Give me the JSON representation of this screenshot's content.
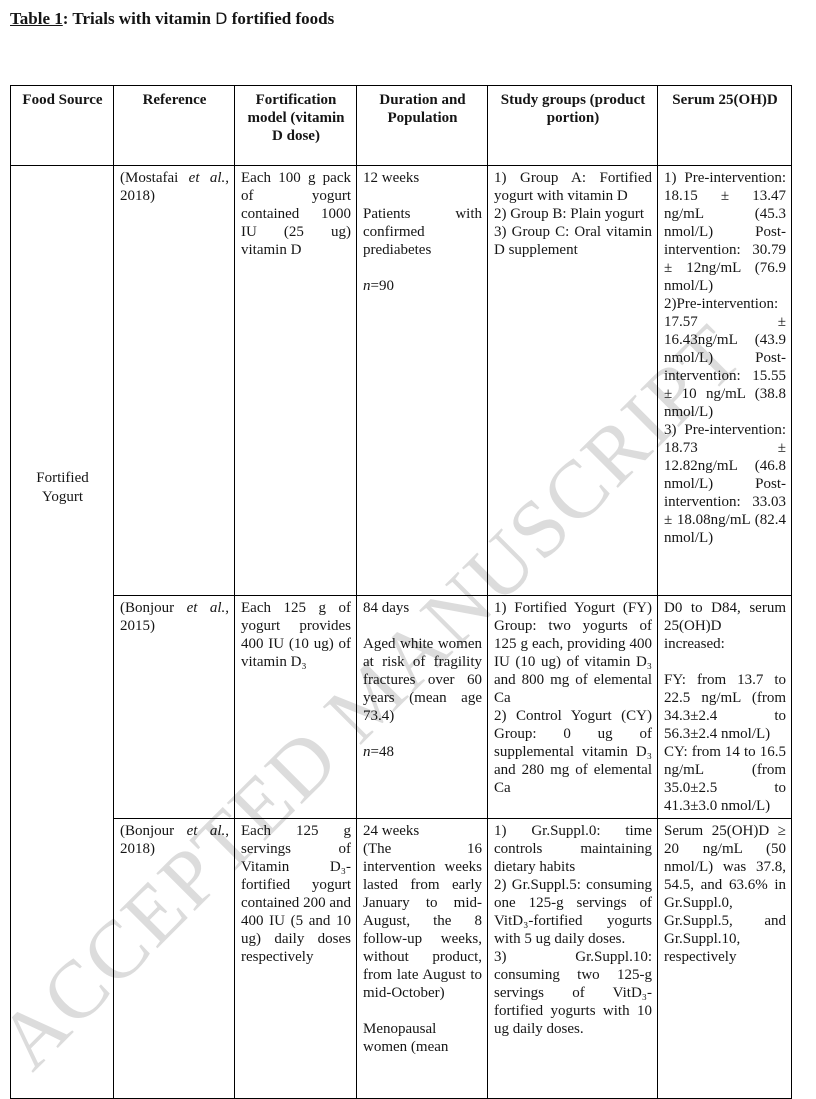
{
  "page": {
    "title": {
      "label": "Table 1",
      "separator": ": ",
      "before_d": "Trials with vitamin ",
      "d": "D",
      "after_d": " fortified foods"
    }
  },
  "watermark": {
    "text": "ACCEPTED MANUSCRIPT",
    "color": "#dcdcdc"
  },
  "table": {
    "headers": [
      "Food Source",
      "Reference",
      "Fortification model (vitamin D dose)",
      "Duration and Population",
      "Study groups (product portion)",
      "Serum 25(OH)D"
    ],
    "food_source": "Fortified Yogurt",
    "rows": [
      {
        "reference": {
          "pre": "(Mostafai ",
          "et_al": "et al.",
          "post": ", 2018)"
        },
        "fortification": "Each 100 g pack of yogurt contained 1000 IU (25 ug) vitamin D",
        "duration": {
          "p1": "12 weeks",
          "p2": "Patients with confirmed prediabetes",
          "n_italic": "n",
          "n_rest": "=90"
        },
        "study_groups": {
          "p1": "1) Group A: Fortified yogurt with vitamin D",
          "p2": "2) Group B: Plain yogurt",
          "p3": "3) Group C: Oral vitamin D supplement"
        },
        "serum": {
          "p1": "1) Pre-intervention: 18.15 ± 13.47 ng/mL (45.3 nmol/L) Post-intervention: 30.79 ± 12ng/mL (76.9 nmol/L)",
          "p2": "2)Pre-intervention: 17.57 ± 16.43ng/mL (43.9 nmol/L) Post-intervention: 15.55 ± 10 ng/mL (38.8 nmol/L)",
          "p3": "3) Pre-intervention: 18.73 ± 12.82ng/mL (46.8 nmol/L) Post-intervention: 33.03 ± 18.08ng/mL (82.4 nmol/L)"
        }
      },
      {
        "reference": {
          "pre": "(Bonjour ",
          "et_al": "et al.",
          "post": ", 2015)"
        },
        "fortification": "Each 125 g of yogurt provides 400 IU (10 ug) of vitamin D₃",
        "duration": {
          "p1": "84 days",
          "p2": "Aged white women at risk of fragility fractures over 60 years (mean age 73.4)",
          "n_italic": "n",
          "n_rest": "=48"
        },
        "study_groups": {
          "p1": "1) Fortified Yogurt (FY) Group: two yogurts of 125 g each, providing 400 IU (10 ug) of vitamin D₃ and 800 mg of elemental Ca",
          "p2": "2) Control Yogurt (CY) Group: 0 ug of supplemental vitamin D₃ and 280 mg of elemental Ca"
        },
        "serum": {
          "p1": "D0 to D84, serum 25(OH)D increased:",
          "p2": "FY: from 13.7 to 22.5 ng/mL (from 34.3±2.4 to 56.3±2.4 nmol/L)",
          "p3": "CY: from 14 to 16.5 ng/mL (from 35.0±2.5 to 41.3±3.0 nmol/L)"
        }
      },
      {
        "reference": {
          "pre": "(Bonjour ",
          "et_al": "et al.",
          "post": ", 2018)"
        },
        "fortification": "Each 125 g servings of Vitamin D₃-fortified yogurt contained 200 and 400 IU (5 and 10 ug) daily doses respectively",
        "duration": {
          "p1": "24 weeks",
          "p2": "(The 16 intervention weeks lasted from early January to mid-August, the 8 follow-up weeks, without product, from late August to mid-October)",
          "p3": "Menopausal women (mean"
        },
        "study_groups": {
          "p1": "1) Gr.Suppl.0: time controls maintaining dietary habits",
          "p2": "2) Gr.Suppl.5: consuming one 125-g servings of VitD₃-fortified yogurts with 5 ug daily doses.",
          "p3": "3) Gr.Suppl.10: consuming two 125-g servings of VitD₃-fortified yogurts with 10 ug daily doses."
        },
        "serum": {
          "p1": "Serum 25(OH)D ≥ 20 ng/mL (50 nmol/L) was 37.8, 54.5, and 63.6% in Gr.Suppl.0, Gr.Suppl.5, and Gr.Suppl.10, respectively"
        }
      }
    ]
  }
}
